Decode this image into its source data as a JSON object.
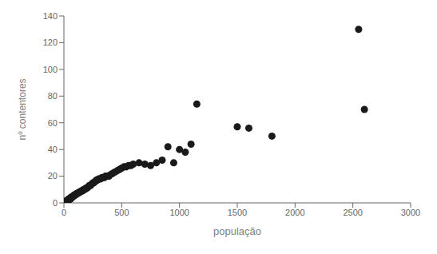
{
  "chart_data": {
    "type": "scatter",
    "xlabel": "população",
    "ylabel": "nº contentores",
    "xlim": [
      0,
      3000
    ],
    "ylim": [
      0,
      140
    ],
    "xticks": [
      0,
      500,
      1000,
      1500,
      2000,
      2500,
      3000
    ],
    "yticks": [
      0,
      20,
      40,
      60,
      80,
      100,
      120,
      140
    ],
    "color": "#1a1a1a",
    "grid": false,
    "x": [
      2,
      3,
      4,
      5,
      6,
      7,
      8,
      9,
      10,
      11,
      12,
      13,
      14,
      15,
      16,
      17,
      18,
      19,
      20,
      22,
      24,
      25,
      26,
      28,
      30,
      32,
      34,
      35,
      36,
      38,
      40,
      42,
      44,
      45,
      46,
      48,
      50,
      52,
      55,
      58,
      60,
      62,
      65,
      68,
      70,
      75,
      80,
      85,
      90,
      95,
      100,
      110,
      120,
      130,
      140,
      150,
      160,
      170,
      180,
      190,
      200,
      210,
      220,
      230,
      240,
      250,
      260,
      270,
      280,
      290,
      300,
      310,
      320,
      330,
      340,
      350,
      360,
      370,
      380,
      390,
      400,
      420,
      440,
      460,
      480,
      500,
      520,
      540,
      560,
      580,
      600,
      650,
      700,
      750,
      800,
      850,
      900,
      950,
      1000,
      1050,
      1100,
      1150,
      1500,
      1600,
      1800,
      2550,
      2600
    ],
    "values": [
      0,
      0,
      0,
      0,
      0,
      0,
      0,
      0,
      0,
      0,
      1,
      1,
      1,
      1,
      1,
      1,
      1,
      1,
      1,
      1,
      1,
      1,
      1,
      2,
      2,
      2,
      2,
      2,
      2,
      2,
      2,
      2,
      3,
      3,
      3,
      3,
      3,
      3,
      3,
      3,
      4,
      4,
      4,
      4,
      4,
      5,
      5,
      5,
      6,
      6,
      6,
      7,
      7,
      8,
      8,
      9,
      9,
      10,
      10,
      11,
      11,
      12,
      13,
      13,
      14,
      15,
      15,
      16,
      17,
      17,
      18,
      18,
      18,
      19,
      19,
      19,
      20,
      20,
      20,
      20,
      21,
      22,
      23,
      24,
      25,
      26,
      27,
      27,
      28,
      28,
      29,
      30,
      29,
      28,
      30,
      32,
      42,
      30,
      40,
      38,
      44,
      74,
      57,
      56,
      50,
      130,
      70
    ]
  }
}
